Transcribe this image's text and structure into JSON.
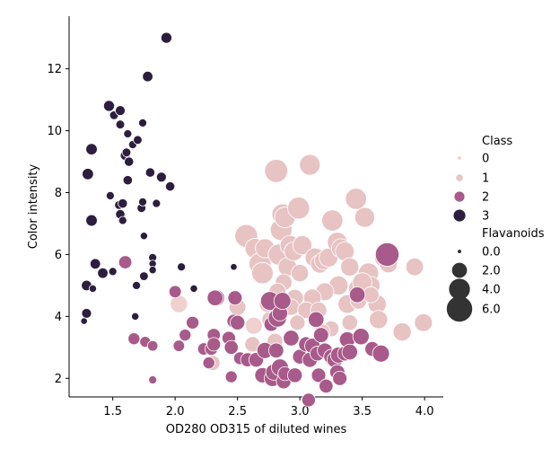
{
  "chart_data": {
    "type": "scatter",
    "xlabel": "OD280 OD315 of diluted wines",
    "ylabel": "Color intensity",
    "xlim": [
      1.15,
      4.15
    ],
    "ylim": [
      1.4,
      13.7
    ],
    "xticks": [
      "1.5",
      "2.0",
      "2.5",
      "3.0",
      "3.5",
      "4.0"
    ],
    "xtick_values": [
      1.5,
      2.0,
      2.5,
      3.0,
      3.5,
      4.0
    ],
    "yticks": [
      "2",
      "4",
      "6",
      "8",
      "10",
      "12"
    ],
    "ytick_values": [
      2,
      4,
      6,
      8,
      10,
      12
    ],
    "grid": false,
    "legend_position": "right",
    "hue": {
      "title": "Class",
      "levels": [
        "0",
        "1",
        "2",
        "3"
      ],
      "colors": [
        "#efd1cf",
        "#e8c3c4",
        "#a85a8a",
        "#2d1e3e"
      ],
      "legend_colors": [
        "#f2d6d2",
        "#e9c6c6",
        "#a85a8a",
        "#2d1e3e"
      ],
      "legend_sizes": [
        5,
        8.5,
        12,
        14
      ]
    },
    "size": {
      "title": "Flavanoids",
      "labels": [
        "0.0",
        "2.0",
        "4.0",
        "6.0"
      ],
      "values": [
        0,
        2,
        4,
        6
      ]
    },
    "series": [
      {
        "class": 0,
        "points": [
          [
            2.03,
            4.4,
            2.7
          ],
          [
            2.31,
            4.6,
            1.5
          ],
          [
            2.63,
            3.7,
            2.6
          ]
        ]
      },
      {
        "class": 1,
        "points": [
          [
            2.57,
            6.6,
            4.8
          ],
          [
            2.64,
            6.2,
            3.6
          ],
          [
            2.68,
            5.7,
            4.4
          ],
          [
            2.7,
            5.4,
            4.2
          ],
          [
            2.72,
            6.2,
            3.3
          ],
          [
            2.81,
            8.7,
            4.9
          ],
          [
            2.83,
            6.0,
            4.0
          ],
          [
            2.85,
            6.8,
            4.3
          ],
          [
            2.86,
            7.3,
            4.0
          ],
          [
            2.88,
            7.2,
            3.9
          ],
          [
            2.9,
            5.6,
            3.1
          ],
          [
            2.92,
            6.3,
            3.5
          ],
          [
            2.95,
            6.1,
            3.2
          ],
          [
            2.99,
            7.5,
            4.4
          ],
          [
            3.02,
            6.3,
            3.3
          ],
          [
            3.08,
            8.9,
            3.9
          ],
          [
            3.12,
            5.9,
            3.4
          ],
          [
            3.16,
            5.7,
            3.1
          ],
          [
            3.19,
            5.8,
            2.9
          ],
          [
            3.23,
            5.9,
            3.2
          ],
          [
            3.26,
            7.1,
            4.1
          ],
          [
            3.3,
            6.4,
            3.6
          ],
          [
            3.33,
            6.2,
            3.3
          ],
          [
            3.36,
            6.1,
            3.2
          ],
          [
            3.4,
            5.6,
            3.0
          ],
          [
            3.45,
            7.8,
            4.1
          ],
          [
            3.52,
            7.2,
            3.6
          ],
          [
            3.55,
            5.4,
            3.7
          ],
          [
            3.57,
            5.0,
            3.0
          ],
          [
            3.62,
            4.4,
            3.0
          ],
          [
            3.68,
            5.9,
            3.7
          ],
          [
            3.71,
            5.7,
            2.9
          ],
          [
            3.92,
            5.6,
            2.8
          ],
          [
            3.99,
            3.8,
            2.9
          ],
          [
            3.82,
            3.5,
            3.0
          ],
          [
            3.63,
            3.9,
            3.0
          ],
          [
            3.47,
            4.9,
            3.6
          ],
          [
            3.5,
            5.1,
            3.4
          ],
          [
            3.38,
            4.4,
            3.1
          ],
          [
            3.31,
            5.0,
            3.3
          ],
          [
            3.2,
            4.8,
            2.9
          ],
          [
            3.1,
            4.6,
            2.8
          ],
          [
            3.0,
            5.4,
            2.7
          ],
          [
            2.96,
            4.6,
            2.6
          ],
          [
            2.87,
            5.1,
            2.5
          ],
          [
            2.82,
            4.8,
            2.6
          ],
          [
            2.76,
            3.9,
            2.3
          ],
          [
            2.74,
            4.4,
            2.4
          ],
          [
            2.93,
            4.3,
            2.4
          ],
          [
            3.05,
            4.2,
            2.5
          ],
          [
            3.15,
            4.2,
            2.4
          ],
          [
            3.25,
            3.6,
            2.2
          ],
          [
            3.4,
            3.8,
            2.2
          ],
          [
            2.5,
            4.3,
            2.5
          ],
          [
            2.3,
            2.5,
            2.0
          ],
          [
            2.62,
            3.1,
            2.1
          ],
          [
            3.18,
            3.5,
            2.2
          ],
          [
            3.47,
            4.5,
            2.4
          ],
          [
            3.57,
            4.7,
            2.3
          ],
          [
            2.98,
            3.8,
            2.1
          ],
          [
            2.8,
            3.2,
            2.2
          ],
          [
            3.26,
            2.6,
            1.9
          ]
        ]
      },
      {
        "class": 2,
        "points": [
          [
            1.6,
            5.75,
            1.5
          ],
          [
            1.67,
            3.28,
            1.2
          ],
          [
            1.76,
            3.18,
            1.0
          ],
          [
            1.82,
            3.05,
            0.9
          ],
          [
            1.82,
            1.95,
            0.5
          ],
          [
            2.0,
            4.8,
            1.3
          ],
          [
            2.03,
            3.05,
            1.1
          ],
          [
            2.08,
            3.4,
            1.2
          ],
          [
            2.14,
            3.8,
            1.4
          ],
          [
            2.23,
            2.95,
            1.3
          ],
          [
            2.27,
            2.5,
            1.2
          ],
          [
            2.29,
            2.95,
            1.4
          ],
          [
            2.31,
            3.4,
            1.5
          ],
          [
            2.31,
            3.1,
            1.6
          ],
          [
            2.33,
            4.6,
            2.4
          ],
          [
            2.43,
            3.3,
            1.6
          ],
          [
            2.45,
            2.05,
            1.2
          ],
          [
            2.45,
            3.0,
            1.7
          ],
          [
            2.47,
            3.85,
            1.6
          ],
          [
            2.48,
            4.6,
            1.8
          ],
          [
            2.5,
            3.8,
            1.9
          ],
          [
            2.52,
            2.65,
            1.4
          ],
          [
            2.58,
            2.6,
            1.7
          ],
          [
            2.65,
            2.6,
            1.9
          ],
          [
            2.7,
            2.1,
            2.1
          ],
          [
            2.72,
            2.9,
            2.3
          ],
          [
            2.76,
            4.5,
            3.2
          ],
          [
            2.77,
            3.75,
            1.8
          ],
          [
            2.78,
            2.0,
            2.4
          ],
          [
            2.79,
            2.2,
            2.3
          ],
          [
            2.81,
            2.9,
            2.0
          ],
          [
            2.82,
            3.95,
            3.0
          ],
          [
            2.84,
            2.35,
            2.6
          ],
          [
            2.84,
            4.1,
            2.1
          ],
          [
            2.86,
            4.5,
            2.6
          ],
          [
            2.87,
            1.9,
            1.9
          ],
          [
            2.88,
            2.15,
            1.7
          ],
          [
            2.93,
            3.3,
            2.2
          ],
          [
            2.96,
            2.1,
            1.9
          ],
          [
            3.0,
            2.7,
            1.9
          ],
          [
            3.05,
            3.1,
            2.0
          ],
          [
            3.07,
            1.3,
            1.6
          ],
          [
            3.08,
            2.6,
            2.0
          ],
          [
            3.1,
            3.05,
            2.1
          ],
          [
            3.13,
            3.9,
            2.2
          ],
          [
            3.14,
            2.8,
            1.9
          ],
          [
            3.15,
            2.1,
            1.8
          ],
          [
            3.17,
            3.4,
            2.0
          ],
          [
            3.2,
            2.9,
            2.0
          ],
          [
            3.21,
            1.75,
            1.7
          ],
          [
            3.25,
            2.7,
            1.9
          ],
          [
            3.28,
            2.6,
            2.2
          ],
          [
            3.3,
            2.2,
            2.0
          ],
          [
            3.31,
            2.75,
            2.3
          ],
          [
            3.32,
            2.0,
            1.8
          ],
          [
            3.36,
            2.8,
            1.9
          ],
          [
            3.38,
            3.25,
            2.2
          ],
          [
            3.4,
            2.85,
            2.2
          ],
          [
            3.46,
            4.7,
            2.2
          ],
          [
            3.49,
            3.35,
            2.4
          ],
          [
            3.58,
            2.95,
            1.9
          ],
          [
            3.65,
            2.8,
            2.6
          ],
          [
            3.7,
            6.0,
            5.1
          ],
          [
            2.32,
            4.6,
            2.2
          ]
        ]
      },
      {
        "class": 3,
        "points": [
          [
            1.27,
            3.85,
            0.3
          ],
          [
            1.29,
            4.1,
            0.8
          ],
          [
            1.29,
            5.0,
            0.9
          ],
          [
            1.3,
            8.6,
            1.1
          ],
          [
            1.33,
            9.4,
            1.1
          ],
          [
            1.33,
            7.1,
            1.1
          ],
          [
            1.34,
            4.9,
            0.4
          ],
          [
            1.36,
            5.7,
            0.9
          ],
          [
            1.42,
            5.4,
            0.9
          ],
          [
            1.47,
            10.8,
            1.0
          ],
          [
            1.48,
            7.9,
            0.5
          ],
          [
            1.5,
            5.45,
            0.5
          ],
          [
            1.51,
            10.5,
            0.6
          ],
          [
            1.55,
            7.6,
            0.6
          ],
          [
            1.56,
            10.2,
            0.6
          ],
          [
            1.56,
            7.3,
            0.7
          ],
          [
            1.56,
            10.65,
            0.8
          ],
          [
            1.58,
            7.1,
            0.5
          ],
          [
            1.58,
            7.65,
            0.7
          ],
          [
            1.6,
            9.2,
            0.8
          ],
          [
            1.61,
            9.3,
            0.6
          ],
          [
            1.62,
            8.4,
            0.7
          ],
          [
            1.62,
            9.9,
            0.5
          ],
          [
            1.63,
            9.0,
            0.7
          ],
          [
            1.66,
            9.55,
            0.5
          ],
          [
            1.68,
            4.0,
            0.4
          ],
          [
            1.69,
            5.0,
            0.5
          ],
          [
            1.7,
            9.7,
            0.6
          ],
          [
            1.73,
            7.5,
            0.6
          ],
          [
            1.74,
            7.7,
            0.5
          ],
          [
            1.74,
            10.25,
            0.5
          ],
          [
            1.75,
            5.3,
            0.6
          ],
          [
            1.75,
            6.6,
            0.4
          ],
          [
            1.78,
            11.75,
            0.9
          ],
          [
            1.8,
            8.65,
            0.7
          ],
          [
            1.82,
            5.9,
            0.5
          ],
          [
            1.82,
            5.7,
            0.4
          ],
          [
            1.82,
            5.5,
            0.4
          ],
          [
            1.85,
            7.65,
            0.5
          ],
          [
            1.89,
            8.5,
            0.8
          ],
          [
            1.93,
            13.0,
            1.0
          ],
          [
            1.96,
            8.2,
            0.7
          ],
          [
            2.05,
            5.6,
            0.5
          ],
          [
            2.15,
            4.9,
            0.4
          ],
          [
            2.47,
            5.6,
            0.3
          ]
        ]
      }
    ]
  }
}
